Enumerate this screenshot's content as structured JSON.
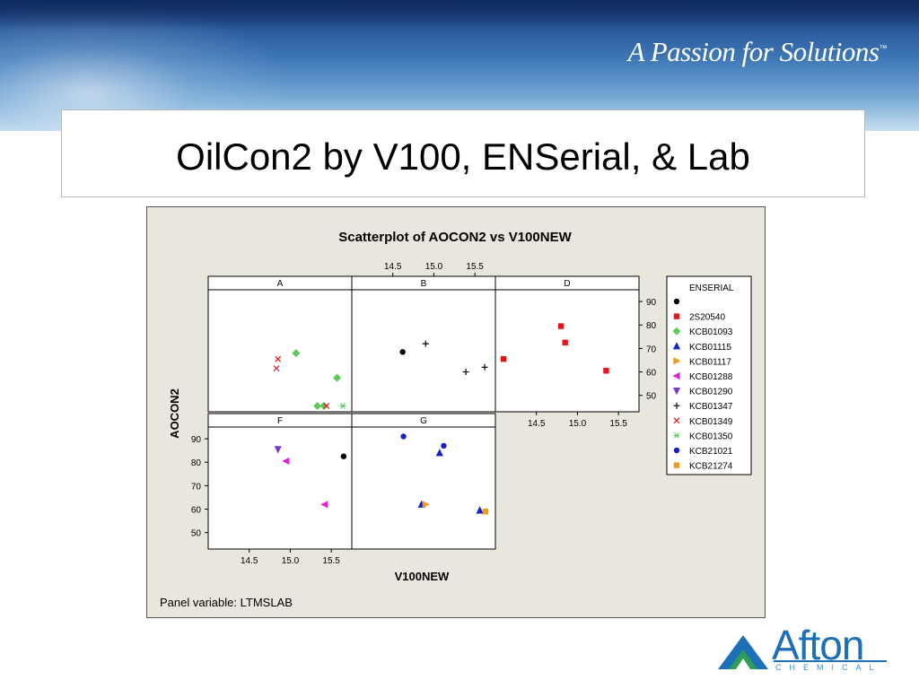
{
  "slide": {
    "tagline": "A Passion for Solutions",
    "tagline_mark": "™",
    "title": "OilCon2 by V100, ENSerial, & Lab",
    "logo": {
      "name": "Afton",
      "sub": "CHEMICAL"
    }
  },
  "chart_data": {
    "type": "scatter",
    "title": "Scatterplot of AOCON2 vs V100NEW",
    "xlabel": "V100NEW",
    "ylabel": "AOCON2",
    "footer": "Panel variable: LTMSLAB",
    "xlim": [
      14.0,
      15.75
    ],
    "ylim": [
      43,
      95
    ],
    "xticks": [
      14.5,
      15.0,
      15.5
    ],
    "yticks": [
      50,
      60,
      70,
      80,
      90
    ],
    "grid": false,
    "legend_position": "right",
    "legend_title": "ENSERIAL",
    "series": [
      {
        "name": "",
        "marker": "circle",
        "color": "#000000"
      },
      {
        "name": "2S20540",
        "marker": "square",
        "color": "#e8141c"
      },
      {
        "name": "KCB01093",
        "marker": "diamond",
        "color": "#5ec85a"
      },
      {
        "name": "KCB01115",
        "marker": "triangle-up",
        "color": "#1620c8"
      },
      {
        "name": "KCB01117",
        "marker": "triangle-right",
        "color": "#f29a1a"
      },
      {
        "name": "KCB01288",
        "marker": "triangle-left",
        "color": "#e020d8"
      },
      {
        "name": "KCB01290",
        "marker": "triangle-down",
        "color": "#7a3cc0"
      },
      {
        "name": "KCB01347",
        "marker": "plus",
        "color": "#000000"
      },
      {
        "name": "KCB01349",
        "marker": "x",
        "color": "#e8141c"
      },
      {
        "name": "KCB01350",
        "marker": "asterisk",
        "color": "#5ec85a"
      },
      {
        "name": "KCB21021",
        "marker": "circle",
        "color": "#1620c8"
      },
      {
        "name": "KCB21274",
        "marker": "square",
        "color": "#f29a1a"
      }
    ],
    "panels": [
      {
        "label": "A",
        "row": 0,
        "col": 0,
        "points": [
          {
            "s": 8,
            "x": 14.85,
            "y": 65.5
          },
          {
            "s": 8,
            "x": 14.83,
            "y": 61.5
          },
          {
            "s": 2,
            "x": 15.07,
            "y": 68
          },
          {
            "s": 2,
            "x": 15.57,
            "y": 57.5
          },
          {
            "s": 2,
            "x": 15.33,
            "y": 45.5
          },
          {
            "s": 2,
            "x": 15.41,
            "y": 45.5
          },
          {
            "s": 8,
            "x": 15.44,
            "y": 45.5
          },
          {
            "s": 9,
            "x": 15.64,
            "y": 45.5
          }
        ]
      },
      {
        "label": "B",
        "row": 0,
        "col": 1,
        "points": [
          {
            "s": 0,
            "x": 14.62,
            "y": 68.5
          },
          {
            "s": 7,
            "x": 14.9,
            "y": 72
          },
          {
            "s": 7,
            "x": 15.39,
            "y": 60
          },
          {
            "s": 7,
            "x": 15.62,
            "y": 62
          }
        ]
      },
      {
        "label": "D",
        "row": 0,
        "col": 2,
        "points": [
          {
            "s": 1,
            "x": 14.1,
            "y": 65.5
          },
          {
            "s": 1,
            "x": 14.8,
            "y": 79.5
          },
          {
            "s": 1,
            "x": 14.85,
            "y": 72.5
          },
          {
            "s": 1,
            "x": 15.35,
            "y": 60.5
          }
        ]
      },
      {
        "label": "F",
        "row": 1,
        "col": 0,
        "points": [
          {
            "s": 6,
            "x": 14.85,
            "y": 85.5
          },
          {
            "s": 5,
            "x": 14.95,
            "y": 80.5
          },
          {
            "s": 0,
            "x": 15.65,
            "y": 82.5
          },
          {
            "s": 5,
            "x": 15.42,
            "y": 62
          }
        ]
      },
      {
        "label": "G",
        "row": 1,
        "col": 1,
        "points": [
          {
            "s": 10,
            "x": 14.63,
            "y": 91
          },
          {
            "s": 10,
            "x": 15.12,
            "y": 87
          },
          {
            "s": 3,
            "x": 15.07,
            "y": 84
          },
          {
            "s": 3,
            "x": 14.85,
            "y": 62
          },
          {
            "s": 4,
            "x": 14.9,
            "y": 62
          },
          {
            "s": 3,
            "x": 15.56,
            "y": 59.5
          },
          {
            "s": 11,
            "x": 15.63,
            "y": 59
          }
        ]
      }
    ]
  }
}
